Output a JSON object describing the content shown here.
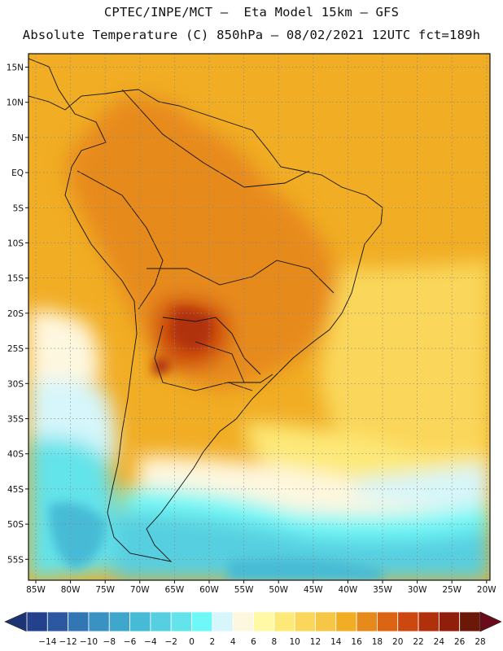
{
  "header": {
    "line1": "CPTEC/INPE/MCT –  Eta Model 15km – GFS",
    "line2": "Absolute Temperature (C) 850hPa – 08/02/2021 12UTC fct=189h"
  },
  "map": {
    "region": "South America",
    "lat_labels": [
      "15N",
      "10N",
      "5N",
      "EQ",
      "5S",
      "10S",
      "15S",
      "20S",
      "25S",
      "30S",
      "35S",
      "40S",
      "45S",
      "50S",
      "55S"
    ],
    "lon_labels": [
      "85W",
      "80W",
      "75W",
      "70W",
      "65W",
      "60W",
      "55W",
      "50W",
      "45W",
      "40W",
      "35W",
      "30W",
      "25W",
      "20W"
    ]
  },
  "colorbar": {
    "tick_labels": [
      "-14",
      "-12",
      "-10",
      "-8",
      "-6",
      "-4",
      "-2",
      "0",
      "2",
      "4",
      "6",
      "8",
      "10",
      "12",
      "14",
      "16",
      "18",
      "20",
      "22",
      "24",
      "26",
      "28"
    ],
    "colors": [
      "#23418c",
      "#2b58a0",
      "#3376b4",
      "#3a92c2",
      "#3fa7cc",
      "#47bbd6",
      "#56cfe0",
      "#63e3ea",
      "#6ff8f8",
      "#d6f6fb",
      "#fef7df",
      "#fff9a6",
      "#fde978",
      "#fad75a",
      "#f6c646",
      "#f1ad24",
      "#e78a1c",
      "#dc6514",
      "#cc4810",
      "#b0300c",
      "#8f1f0a",
      "#6b1808"
    ],
    "low_arrow_color": "#1c3472",
    "high_arrow_color": "#6a0a1a"
  }
}
